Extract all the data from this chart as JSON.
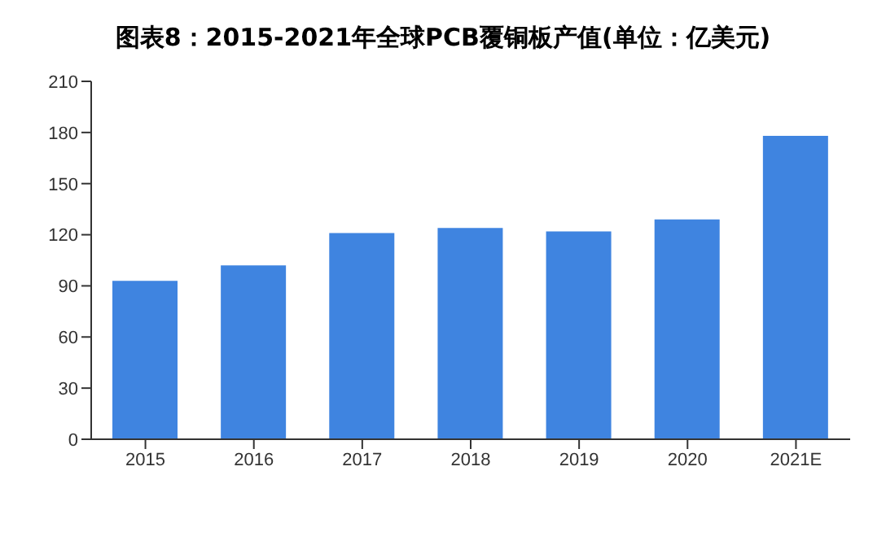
{
  "chart_data": {
    "type": "bar",
    "title": "图表8：2015-2021年全球PCB覆铜板产值(单位：亿美元)",
    "categories": [
      "2015",
      "2016",
      "2017",
      "2018",
      "2019",
      "2020",
      "2021E"
    ],
    "values": [
      93,
      102,
      121,
      124,
      122,
      129,
      178
    ],
    "color": "#3f84e0",
    "ylim": [
      0,
      210
    ],
    "yticks": [
      0,
      30,
      60,
      90,
      120,
      150,
      180,
      210
    ],
    "grid": false
  }
}
